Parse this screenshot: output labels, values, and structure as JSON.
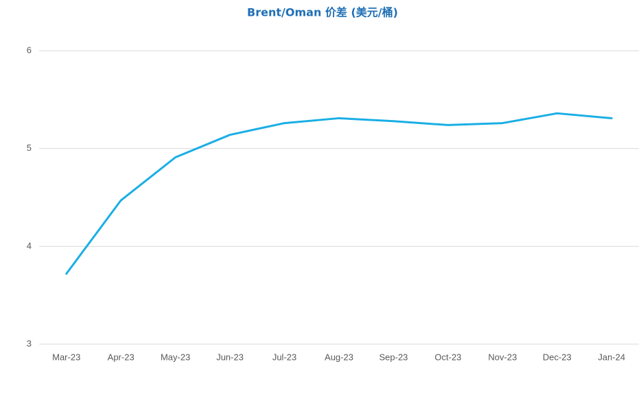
{
  "chart_data": {
    "type": "line",
    "title": "Brent/Oman 价差 (美元/桶)",
    "categories": [
      "Mar-23",
      "Apr-23",
      "May-23",
      "Jun-23",
      "Jul-23",
      "Aug-23",
      "Sep-23",
      "Oct-23",
      "Nov-23",
      "Dec-23",
      "Jan-24"
    ],
    "series": [
      {
        "color": "#1aaee5",
        "values": [
          3.72,
          4.47,
          4.91,
          5.14,
          5.26,
          5.31,
          5.28,
          5.24,
          5.26,
          5.36,
          5.31
        ]
      }
    ],
    "ylim": [
      3,
      6
    ],
    "yticks": [
      3,
      4,
      5,
      6
    ],
    "grid": true
  }
}
